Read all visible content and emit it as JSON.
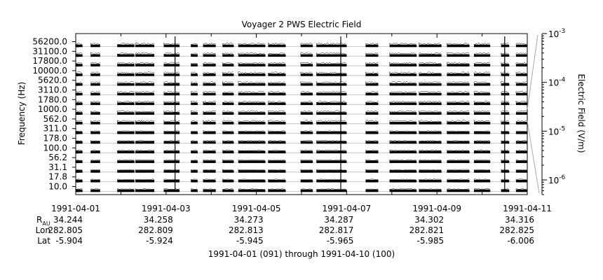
{
  "chart_data": {
    "type": "spectrogram-lines",
    "title": "Voyager 2 PWS Electric Field",
    "ylabel": "Frequency (Hz)",
    "y2label": "Electric Field (V/m)",
    "channels": [
      "56200.0",
      "31100.0",
      "17800.0",
      "10000.0",
      "5620.0",
      "3110.0",
      "1780.0",
      "1000.0",
      "562.0",
      "311.0",
      "178.0",
      "100.0",
      "56.2",
      "31.1",
      "17.8",
      "10.0"
    ],
    "color_scale": {
      "min": 5e-07,
      "max": 0.001,
      "log": true,
      "tick_labels": [
        "10^-3",
        "10^-4",
        "10^-5",
        "10^-6"
      ],
      "tick_values": [
        0.001,
        0.0001,
        1e-05,
        1e-06
      ]
    },
    "x_range": [
      "1991-04-01",
      "1991-04-11"
    ],
    "x_ticks": [
      "1991-04-01",
      "1991-04-03",
      "1991-04-05",
      "1991-04-07",
      "1991-04-09",
      "1991-04-11"
    ],
    "ephemeris": {
      "rows": [
        {
          "label_main": "R",
          "label_sub": "AU",
          "values": [
            "34.244",
            "34.258",
            "34.273",
            "34.287",
            "34.302",
            "34.316"
          ]
        },
        {
          "label_main": "Lon",
          "label_sub": "",
          "values": [
            "282.805",
            "282.809",
            "282.813",
            "282.817",
            "282.821",
            "282.825"
          ]
        },
        {
          "label_main": "Lat",
          "label_sub": "",
          "values": [
            "-5.904",
            "-5.924",
            "-5.945",
            "-5.965",
            "-5.985",
            "-6.006"
          ]
        }
      ]
    },
    "footer": "1991-04-01 (091) through 1991-04-10 (100)",
    "data_segments_days": [
      [
        0.0,
        0.15
      ],
      [
        0.33,
        0.54
      ],
      [
        0.92,
        1.3
      ],
      [
        1.32,
        1.74
      ],
      [
        1.95,
        2.3
      ],
      [
        2.55,
        2.7
      ],
      [
        2.82,
        3.1
      ],
      [
        3.25,
        3.5
      ],
      [
        3.6,
        4.2
      ],
      [
        4.26,
        4.65
      ],
      [
        4.98,
        5.25
      ],
      [
        5.33,
        6.0
      ],
      [
        6.42,
        6.7
      ],
      [
        6.95,
        7.55
      ],
      [
        7.6,
        8.1
      ],
      [
        8.22,
        8.72
      ],
      [
        8.82,
        9.18
      ],
      [
        9.42,
        9.6
      ],
      [
        9.75,
        10.0
      ]
    ],
    "spike_days": [
      2.2,
      5.87,
      9.5
    ]
  }
}
